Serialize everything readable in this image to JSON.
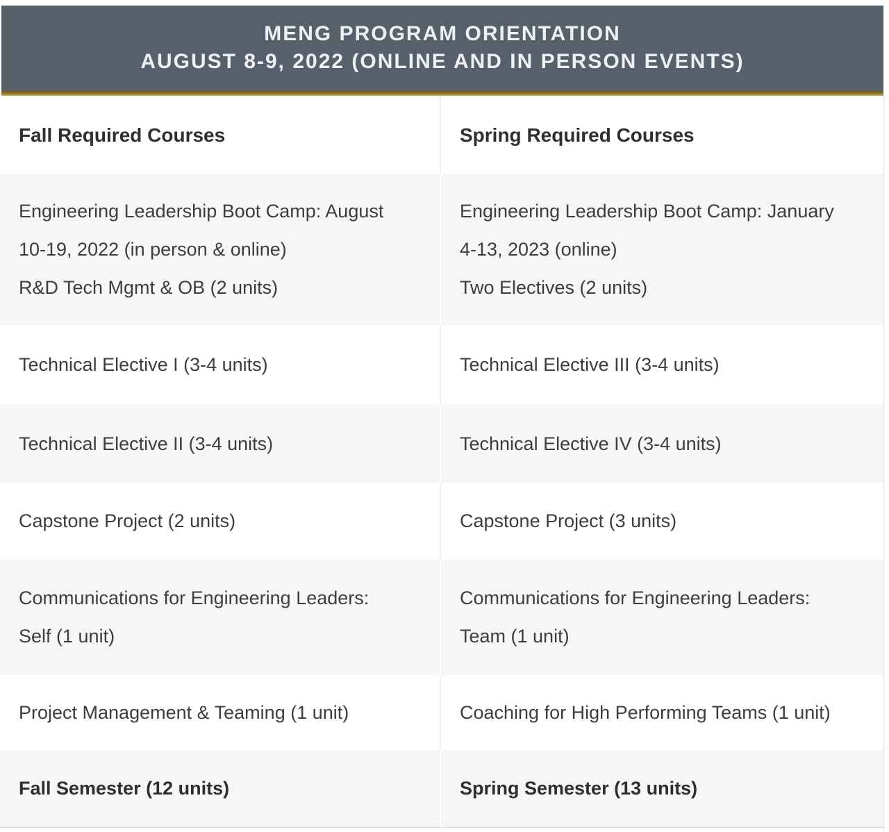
{
  "header": {
    "title_line1": "MENG PROGRAM ORIENTATION",
    "title_line2": "AUGUST 8-9, 2022 (ONLINE AND IN PERSON EVENTS)"
  },
  "table": {
    "columns": [
      {
        "label": "Fall Required Courses"
      },
      {
        "label": "Spring Required Courses"
      }
    ],
    "rows": [
      {
        "fall": [
          "Engineering Leadership Boot Camp: August",
          "10-19, 2022 (in person & online)",
          "R&D Tech Mgmt & OB (2 units)"
        ],
        "spring": [
          "Engineering Leadership Boot Camp: January",
          "4-13, 2023 (online)",
          "Two Electives (2 units)"
        ]
      },
      {
        "fall": "Technical Elective I (3-4 units)",
        "spring": "Technical Elective III (3-4 units)"
      },
      {
        "fall": "Technical Elective II (3-4 units)",
        "spring": "Technical Elective IV (3-4 units)"
      },
      {
        "fall": "Capstone Project (2 units)",
        "spring": "Capstone Project (3 units)"
      },
      {
        "fall": [
          "Communications for Engineering Leaders:",
          "Self (1 unit)"
        ],
        "spring": [
          "Communications for Engineering Leaders:",
          "Team (1 unit)"
        ]
      },
      {
        "fall": "Project Management & Teaming (1 unit)",
        "spring": "Coaching for High Performing Teams (1 unit)"
      },
      {
        "fall": "Fall Semester (12 units)",
        "spring": "Spring Semester (13 units)"
      }
    ]
  },
  "colors": {
    "banner_bg": "#56616c",
    "accent_gold": "#8a6d2b",
    "alt_row_bg": "#f5f6f7",
    "body_text": "#3d3d3d"
  }
}
